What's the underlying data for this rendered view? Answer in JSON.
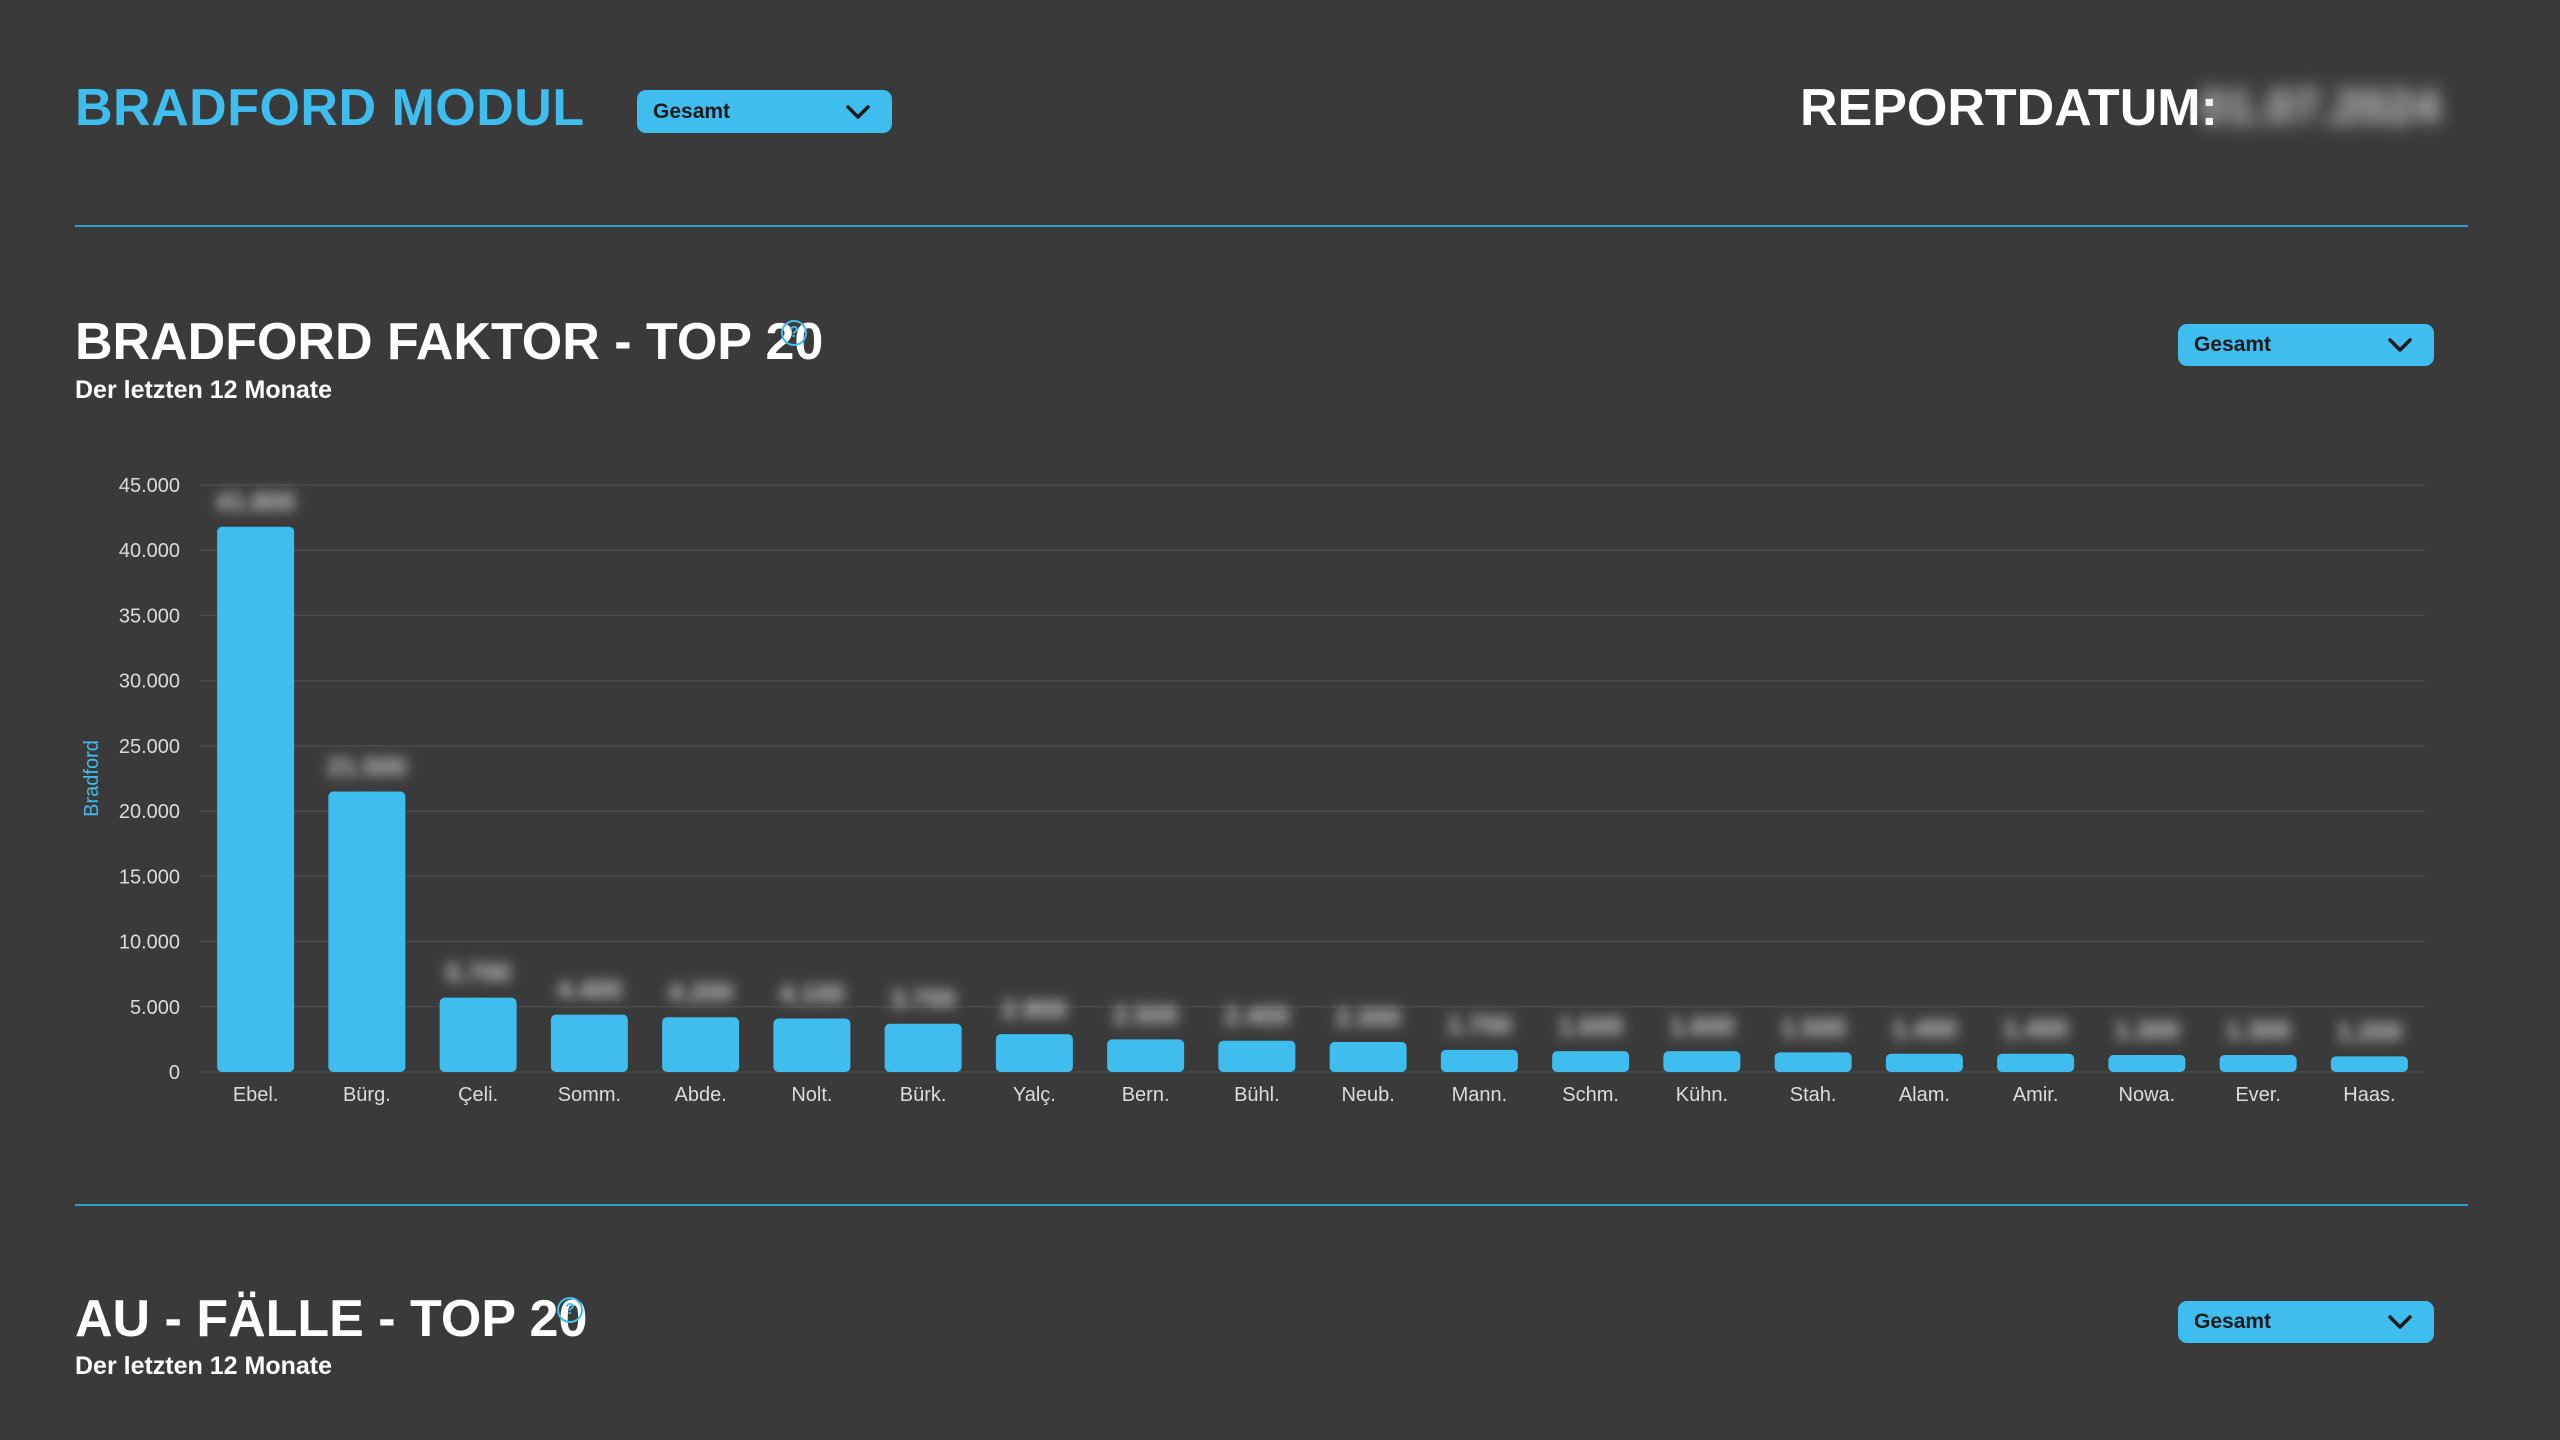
{
  "header": {
    "title": "BRADFORD MODUL",
    "filter_value": "Gesamt",
    "report_label": "REPORTDATUM:",
    "report_date": "01.07.2024"
  },
  "sections": [
    {
      "title": "BRADFORD FAKTOR - TOP 20",
      "help_glyph": "?",
      "subtitle": "Der letzten 12 Monate",
      "filter_value": "Gesamt"
    },
    {
      "title": "AU - FÄLLE - TOP 20",
      "help_glyph": "?",
      "subtitle": "Der letzten 12 Monate",
      "filter_value": "Gesamt"
    }
  ],
  "colors": {
    "background": "#3a3a3a",
    "accent": "#3fbdee",
    "divider": "#2f9ec8",
    "grid": "#4d4d4d"
  },
  "chart_data": {
    "type": "bar",
    "title": "",
    "xlabel": "",
    "ylabel": "Bradford",
    "ylim": [
      0,
      45000
    ],
    "yticks": [
      0,
      5000,
      10000,
      15000,
      20000,
      25000,
      30000,
      35000,
      40000,
      45000
    ],
    "ytick_labels": [
      "0",
      "5.000",
      "10.000",
      "15.000",
      "20.000",
      "25.000",
      "30.000",
      "35.000",
      "40.000",
      "45.000"
    ],
    "grid": true,
    "categories": [
      "Ebel.",
      "Bürg.",
      "Çeli.",
      "Somm.",
      "Abde.",
      "Nolt.",
      "Bürk.",
      "Yalç.",
      "Bern.",
      "Bühl.",
      "Neub.",
      "Mann.",
      "Schm.",
      "Kühn.",
      "Stah.",
      "Alam.",
      "Amir.",
      "Nowa.",
      "Ever.",
      "Haas."
    ],
    "values": [
      41800,
      21500,
      5700,
      4400,
      4200,
      4100,
      3700,
      2900,
      2500,
      2400,
      2300,
      1700,
      1600,
      1600,
      1500,
      1400,
      1400,
      1300,
      1300,
      1200
    ]
  }
}
